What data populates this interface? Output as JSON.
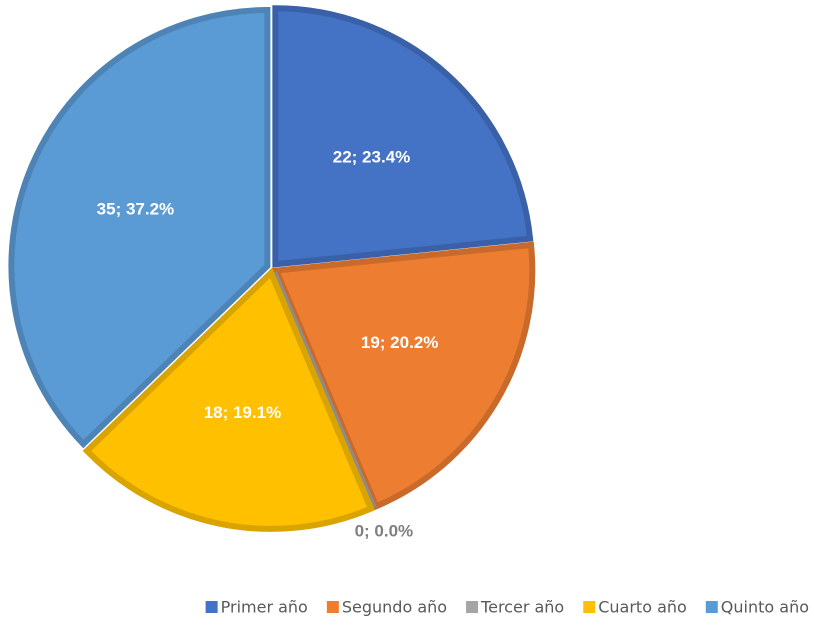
{
  "chart_data": {
    "type": "pie",
    "categories": [
      "Primer año",
      "Segundo año",
      "Tercer año",
      "Cuarto año",
      "Quinto año"
    ],
    "values": [
      22,
      19,
      0,
      18,
      35
    ],
    "value_labels": [
      "22; 23.4%",
      "19; 20.2%",
      "0; 0.0%",
      "18; 19.1%",
      "35; 37.2%"
    ],
    "colors": [
      "#4472c4",
      "#ed7d31",
      "#a5a5a5",
      "#ffc000",
      "#5b9bd5"
    ],
    "legend": "bottom"
  }
}
